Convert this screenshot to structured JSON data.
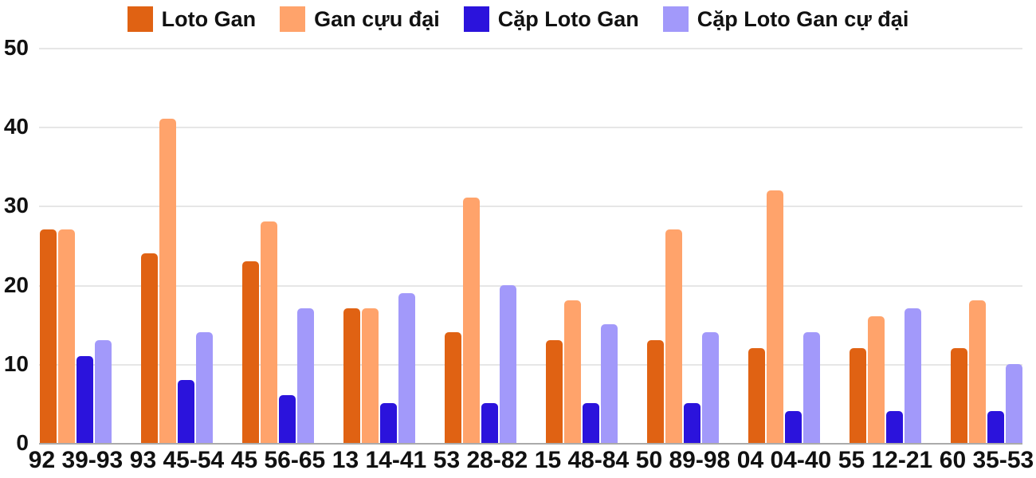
{
  "chart_data": {
    "type": "bar",
    "title": "",
    "xlabel": "",
    "ylabel": "",
    "categories": [
      "92 39-93",
      "93 45-54",
      "45 56-65",
      "13 14-41",
      "53 28-82",
      "15 48-84",
      "50 89-98",
      "04 04-40",
      "55 12-21",
      "60 35-53"
    ],
    "series": [
      {
        "name": "Loto Gan",
        "color": "#E06213",
        "values": [
          27,
          24,
          23,
          17,
          14,
          13,
          13,
          12,
          12,
          12
        ]
      },
      {
        "name": "Gan cựu đại",
        "color": "#FFA36B",
        "values": [
          27,
          41,
          28,
          17,
          31,
          18,
          27,
          32,
          16,
          18
        ]
      },
      {
        "name": "Cặp Loto Gan",
        "color": "#2B13DC",
        "values": [
          11,
          8,
          6,
          5,
          5,
          5,
          5,
          4,
          4,
          4
        ]
      },
      {
        "name": "Cặp Loto Gan cự đại",
        "color": "#A299FA",
        "values": [
          13,
          14,
          17,
          19,
          20,
          15,
          14,
          14,
          17,
          10
        ]
      }
    ],
    "ylim": [
      0,
      50
    ],
    "yticks": [
      0,
      10,
      20,
      30,
      40,
      50
    ],
    "grid": true,
    "legend_position": "top",
    "colors": {
      "axis_text": "#111111",
      "gridline": "#E6E6E6",
      "axis_baseline": "#AAAAAA",
      "background": "#FFFFFF"
    }
  }
}
